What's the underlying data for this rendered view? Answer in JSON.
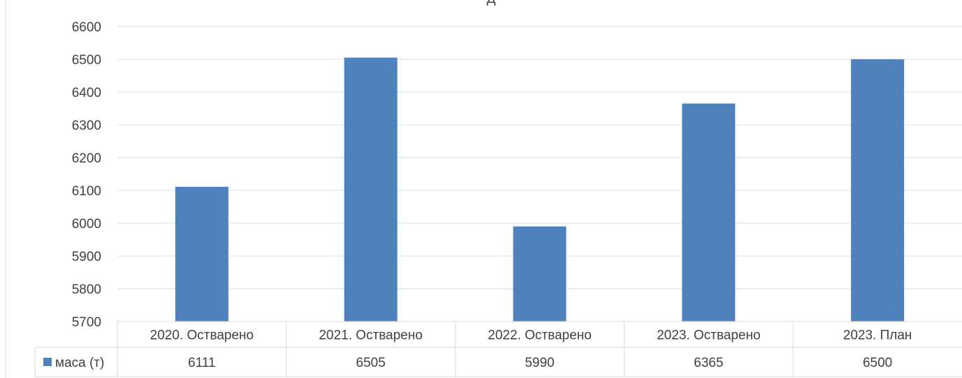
{
  "chart_data": {
    "type": "bar",
    "title": "Д",
    "categories": [
      "2020. Остварено",
      "2021. Остварено",
      "2022. Остварено",
      "2023. Остварено",
      "2023. План"
    ],
    "series": [
      {
        "name": "маса (т)",
        "values": [
          6111,
          6505,
          5990,
          6365,
          6500
        ],
        "color": "#4f81bd"
      }
    ],
    "ylim": [
      5700,
      6600
    ],
    "yticks": [
      5700,
      5800,
      5900,
      6000,
      6100,
      6200,
      6300,
      6400,
      6500,
      6600
    ],
    "grid": true,
    "legend": "data-table",
    "colors": {
      "bar": "#4f81bd",
      "grid": "#d9d9d9",
      "text": "#404040"
    }
  }
}
